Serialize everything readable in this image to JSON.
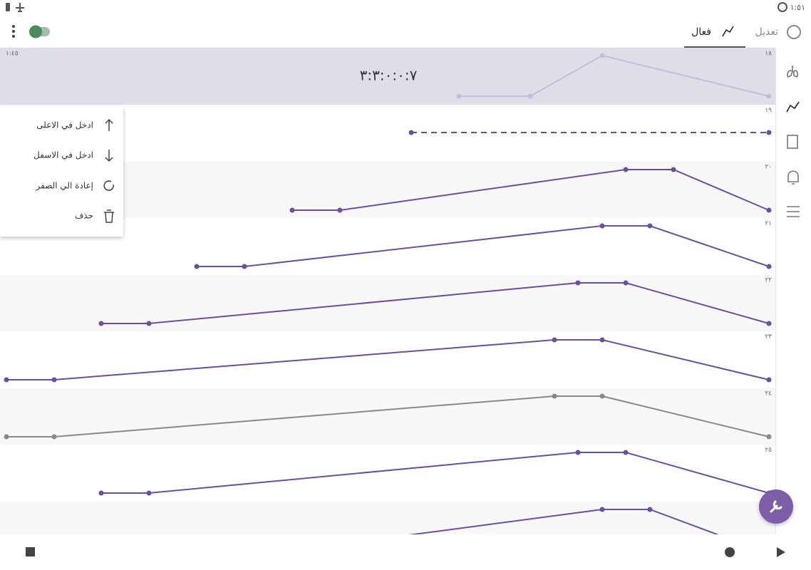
{
  "status_bar": {
    "time": "١:٥١"
  },
  "toolbar": {
    "tabs": [
      "تعديل",
      "فعال"
    ]
  },
  "header_row": {
    "left_label": "١:٤٥",
    "timer": "٣:٣:٠:٠:٧"
  },
  "rows": [
    "١٨",
    "١٩",
    "٢٠",
    "٢١",
    "٢٢",
    "٢٣",
    "٢٤",
    "٢٥"
  ],
  "menu": {
    "items": [
      "ادخل في الاعلى",
      "ادخل في الاسفل",
      "إعادة الي الصفر",
      "حذف"
    ]
  }
}
